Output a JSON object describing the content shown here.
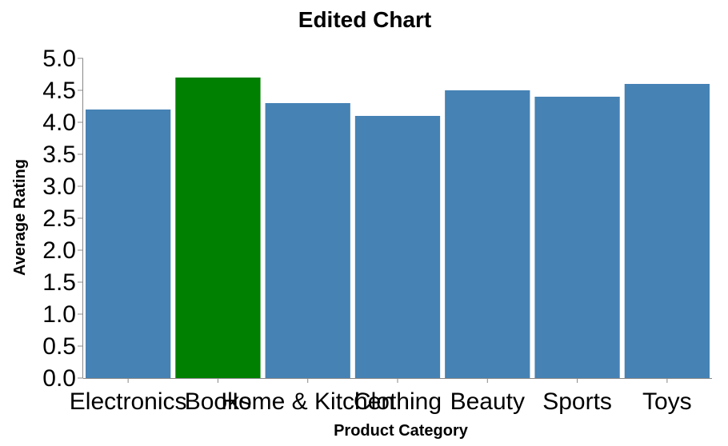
{
  "chart_data": {
    "type": "bar",
    "title": "Edited Chart",
    "xlabel": "Product Category",
    "ylabel": "Average Rating",
    "categories": [
      "Electronics",
      "Books",
      "Home & Kitchen",
      "Clothing",
      "Beauty",
      "Sports",
      "Toys"
    ],
    "values": [
      4.2,
      4.7,
      4.3,
      4.1,
      4.5,
      4.4,
      4.6
    ],
    "highlight_index": 1,
    "ylim": [
      0,
      5
    ],
    "yticks": [
      "0.0",
      "0.5",
      "1.0",
      "1.5",
      "2.0",
      "2.5",
      "3.0",
      "3.5",
      "4.0",
      "4.5",
      "5.0"
    ],
    "grid": false,
    "legend": "none",
    "colors": {
      "bar": "#4682b4",
      "highlight": "#008000",
      "axis": "#888888"
    }
  }
}
